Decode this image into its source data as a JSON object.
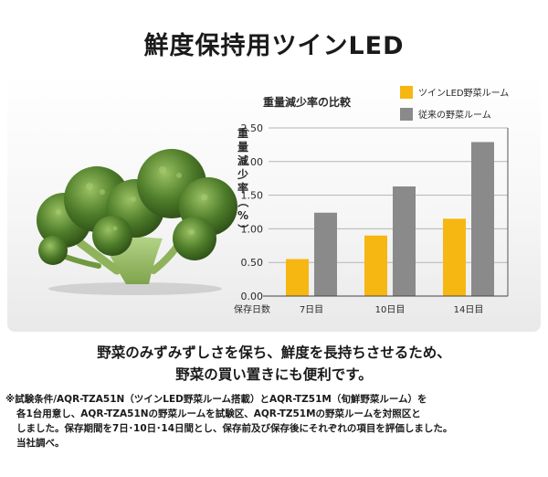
{
  "header": {
    "title": "鮮度保持用ツインLED"
  },
  "chart_data": {
    "type": "bar",
    "title": "重量減少率の比較",
    "ylabel": "重量減少率（%）",
    "xlabel": "保存日数",
    "categories": [
      "7日目",
      "10日目",
      "14日目"
    ],
    "series": [
      {
        "name": "ツインLED野菜ルーム",
        "color": "#f6b713",
        "values": [
          0.55,
          0.9,
          1.15
        ]
      },
      {
        "name": "従来の野菜ルーム",
        "color": "#8a8a8a",
        "values": [
          1.24,
          1.63,
          2.29
        ]
      }
    ],
    "ylim": [
      0,
      2.5
    ],
    "yticks": [
      "0.00",
      "0.50",
      "1.00",
      "1.50",
      "2.00",
      "2.50"
    ],
    "grid": true,
    "legend": "top-right"
  },
  "caption": {
    "line1": "野菜のみずみずしさを保ち、鮮度を長持ちさせるため、",
    "line2": "野菜の買い置きにも便利です。"
  },
  "footnote": {
    "line1": "※試験条件/AQR-TZA51N（ツインLED野菜ルーム搭載）とAQR-TZ51M（旬鮮野菜ルーム）を",
    "line2": "各1台用意し、AQR-TZA51Nの野菜ルームを試験区、AQR-TZ51Mの野菜ルームを対照区と",
    "line3": "しました。保存期間を7日･10日･14日間とし、保存前及び保存後にそれぞれの項目を評価しました。",
    "line4": "当社調べ。"
  },
  "image": {
    "icon": "broccoli-image"
  }
}
